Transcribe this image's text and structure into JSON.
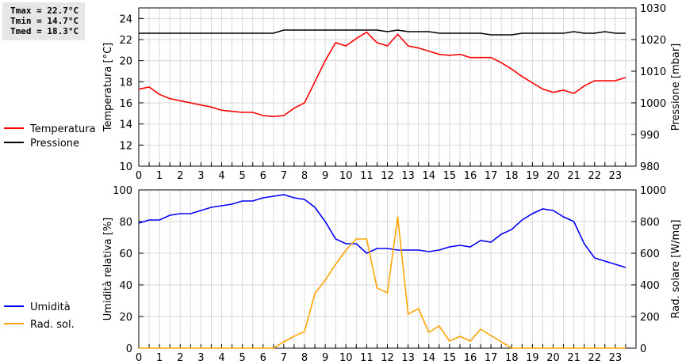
{
  "stats": {
    "tmax": "Tmax = 22.7°C",
    "tmin": "Tmin = 14.7°C",
    "tmed": "Tmed = 18.3°C"
  },
  "chart_data": [
    {
      "type": "line",
      "ylabel": "Temperatura [°C]",
      "y2label": "Pressione [mbar]",
      "ylim": [
        10,
        25
      ],
      "y2lim": [
        980,
        1030
      ],
      "yticks": [
        10,
        12,
        14,
        16,
        18,
        20,
        22,
        24
      ],
      "y2ticks": [
        980,
        990,
        1000,
        1010,
        1020,
        1030
      ],
      "xlim": [
        0,
        24
      ],
      "x": [
        0,
        0.5,
        1,
        1.5,
        2,
        2.5,
        3,
        3.5,
        4,
        4.5,
        5,
        5.5,
        6,
        6.5,
        7,
        7.5,
        8,
        8.5,
        9,
        9.5,
        10,
        10.5,
        11,
        11.5,
        12,
        12.5,
        13,
        13.5,
        14,
        14.5,
        15,
        15.5,
        16,
        16.5,
        17,
        17.5,
        18,
        18.5,
        19,
        19.5,
        20,
        20.5,
        21,
        21.5,
        22,
        22.5,
        23,
        23.5
      ],
      "series": [
        {
          "name": "Temperatura",
          "axis": "left",
          "color": "#ff0000",
          "values": [
            17.3,
            17.5,
            16.8,
            16.4,
            16.2,
            16.0,
            15.8,
            15.6,
            15.3,
            15.2,
            15.1,
            15.1,
            14.8,
            14.7,
            14.8,
            15.5,
            16.0,
            18.0,
            20.0,
            21.7,
            21.4,
            22.1,
            22.7,
            21.7,
            21.4,
            22.5,
            21.4,
            21.2,
            20.9,
            20.6,
            20.5,
            20.6,
            20.3,
            20.3,
            20.3,
            19.8,
            19.2,
            18.5,
            17.9,
            17.3,
            17.0,
            17.2,
            16.9,
            17.6,
            18.1,
            18.1,
            18.1,
            18.4
          ]
        },
        {
          "name": "Pressione",
          "axis": "right",
          "color": "#000000",
          "values": [
            1022,
            1022,
            1022,
            1022,
            1022,
            1022,
            1022,
            1022,
            1022,
            1022,
            1022,
            1022,
            1022,
            1022,
            1023,
            1023,
            1023,
            1023,
            1023,
            1023,
            1023,
            1023,
            1023,
            1023,
            1022.5,
            1023,
            1022.5,
            1022.5,
            1022.5,
            1022,
            1022,
            1022,
            1022,
            1022,
            1021.5,
            1021.5,
            1021.5,
            1022,
            1022,
            1022,
            1022,
            1022,
            1022.5,
            1022,
            1022,
            1022.5,
            1022,
            1022
          ]
        }
      ]
    },
    {
      "type": "line",
      "ylabel": "Umidità relativa [%]",
      "y2label": "Rad. solare [W/mq]",
      "ylim": [
        0,
        100
      ],
      "y2lim": [
        0,
        1000
      ],
      "yticks": [
        0,
        20,
        40,
        60,
        80,
        100
      ],
      "y2ticks": [
        0,
        200,
        400,
        600,
        800,
        1000
      ],
      "xlim": [
        0,
        24
      ],
      "x": [
        0,
        0.5,
        1,
        1.5,
        2,
        2.5,
        3,
        3.5,
        4,
        4.5,
        5,
        5.5,
        6,
        6.5,
        7,
        7.5,
        8,
        8.5,
        9,
        9.5,
        10,
        10.5,
        11,
        11.5,
        12,
        12.5,
        13,
        13.5,
        14,
        14.5,
        15,
        15.5,
        16,
        16.5,
        17,
        17.5,
        18,
        18.5,
        19,
        19.5,
        20,
        20.5,
        21,
        21.5,
        22,
        22.5,
        23,
        23.5
      ],
      "series": [
        {
          "name": "Umidità",
          "axis": "left",
          "color": "#0000ff",
          "values": [
            79,
            81,
            81,
            84,
            85,
            85,
            87,
            89,
            90,
            91,
            93,
            93,
            95,
            96,
            97,
            95,
            94,
            89,
            80,
            69,
            66,
            66,
            60,
            63,
            63,
            62,
            62,
            62,
            61,
            62,
            64,
            65,
            64,
            68,
            67,
            72,
            75,
            81,
            85,
            88,
            87,
            83,
            80,
            66,
            57,
            55,
            53,
            51
          ]
        },
        {
          "name": "Rad. sol.",
          "axis": "right",
          "color": "#ffa500",
          "values": [
            0,
            0,
            0,
            0,
            0,
            0,
            0,
            0,
            0,
            0,
            0,
            0,
            0,
            0,
            40,
            75,
            105,
            345,
            430,
            530,
            620,
            690,
            690,
            380,
            350,
            830,
            215,
            250,
            100,
            140,
            45,
            75,
            45,
            120,
            80,
            40,
            0,
            0,
            0,
            0,
            0,
            0,
            0,
            0,
            0,
            0,
            0,
            0
          ]
        }
      ]
    }
  ],
  "xticklabels": [
    "0",
    "1",
    "2",
    "3",
    "4",
    "5",
    "6",
    "7",
    "8",
    "9",
    "10",
    "11",
    "12",
    "13",
    "14",
    "15",
    "16",
    "17",
    "18",
    "19",
    "20",
    "21",
    "22",
    "23"
  ]
}
